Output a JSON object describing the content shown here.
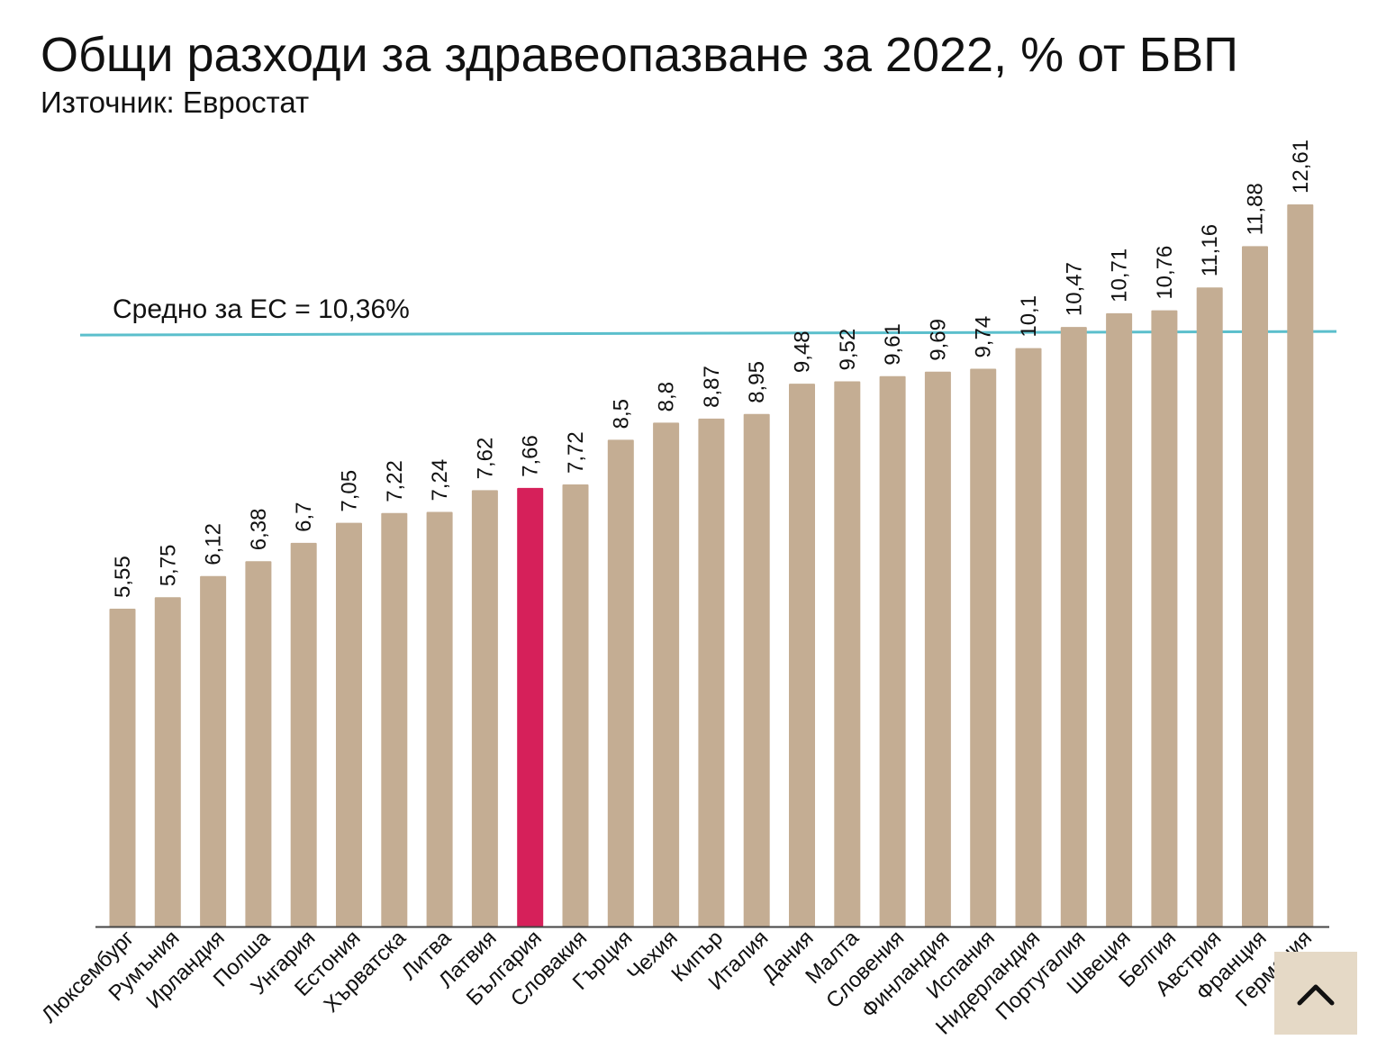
{
  "chart_data": {
    "type": "bar",
    "title": "Общи разходи за здравеопазване за 2022, % от БВП",
    "subtitle": "Източник: Евростат",
    "categories": [
      "Люксембург",
      "Румъния",
      "Ирландия",
      "Полша",
      "Унгария",
      "Естония",
      "Хърватска",
      "Литва",
      "Латвия",
      "България",
      "Словакия",
      "Гърция",
      "Чехия",
      "Кипър",
      "Италия",
      "Дания",
      "Малта",
      "Словения",
      "Финландия",
      "Испания",
      "Нидерландия",
      "Португалия",
      "Швеция",
      "Белгия",
      "Австрия",
      "Франция",
      "Германия"
    ],
    "values": [
      5.55,
      5.75,
      6.12,
      6.38,
      6.7,
      7.05,
      7.22,
      7.24,
      7.62,
      7.66,
      7.72,
      8.5,
      8.8,
      8.87,
      8.95,
      9.48,
      9.52,
      9.61,
      9.69,
      9.74,
      10.1,
      10.47,
      10.71,
      10.76,
      11.16,
      11.88,
      12.61
    ],
    "value_labels": [
      "5,55",
      "5,75",
      "6,12",
      "6,38",
      "6,7",
      "7,05",
      "7,22",
      "7,24",
      "7,62",
      "7,66",
      "7,72",
      "8,5",
      "8,8",
      "8,87",
      "8,95",
      "9,48",
      "9,52",
      "9,61",
      "9,69",
      "9,74",
      "10,1",
      "10,47",
      "10,71",
      "10,76",
      "11,16",
      "11,88",
      "12,61"
    ],
    "highlight": "България",
    "reference_line": {
      "value": 10.36,
      "label": "Средно за ЕС = 10,36%"
    },
    "ylim": [
      0,
      13.5
    ],
    "xlabel": "",
    "ylabel": "",
    "grid": false,
    "colors": {
      "bar": "#c4ad93",
      "highlight": "#d6205a",
      "reference": "#5bbfcc",
      "axis": "#444444",
      "text": "#111111"
    }
  },
  "ui": {
    "scroll_top_icon": "chevron-up-icon",
    "scroll_top_bg": "#e5d9c6"
  }
}
